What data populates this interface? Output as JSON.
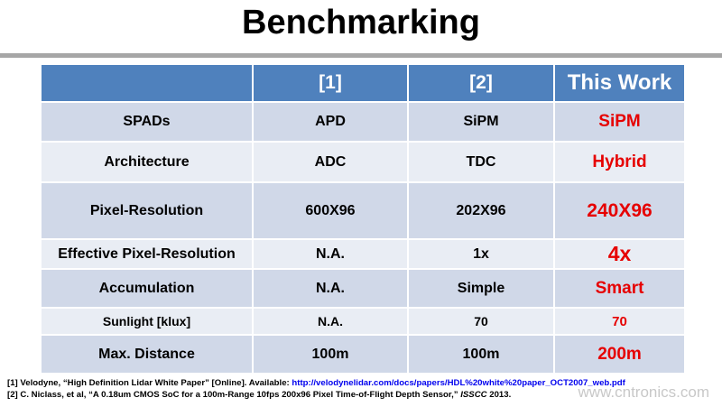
{
  "header": {
    "title": "Benchmarking"
  },
  "table": {
    "columns": [
      "",
      "[1]",
      "[2]",
      "This Work"
    ],
    "rows": [
      [
        "SPADs",
        "APD",
        "SiPM",
        "SiPM"
      ],
      [
        "Architecture",
        "ADC",
        "TDC",
        "Hybrid"
      ],
      [
        "Pixel-Resolution",
        "600X96",
        "202X96",
        "240X96"
      ],
      [
        "Effective Pixel-Resolution",
        "N.A.",
        "1x",
        "4x"
      ],
      [
        "Accumulation",
        "N.A.",
        "Simple",
        "Smart"
      ],
      [
        "Sunlight [klux]",
        "N.A.",
        "70",
        "70"
      ],
      [
        "Max. Distance",
        "100m",
        "100m",
        "200m"
      ]
    ]
  },
  "footnotes": [
    {
      "text": "[1] Velodyne, “High Definition Lidar White Paper” [Online]. Available: ",
      "link": "http://velodynelidar.com/docs/papers/HDL%20white%20paper_OCT2007_web.pdf"
    },
    {
      "text": "[2] C. Niclass, et al, “A 0.18um CMOS SoC for a 100m-Range 10fps 200x96 Pixel Time-of-Flight Depth Sensor,” ",
      "venue": "ISSCC",
      "year": " 2013."
    }
  ],
  "watermark": "www.cntronics.com"
}
